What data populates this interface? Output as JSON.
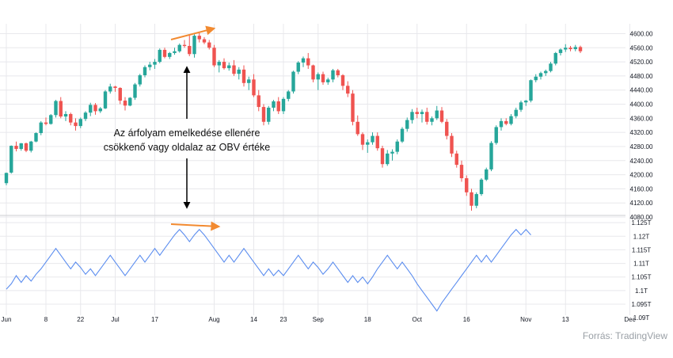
{
  "source_text": "Forrás: TradingView",
  "annotation": {
    "line1": "Az árfolyam emelkedése  ellenére",
    "line2": "csökkenő vagy oldalaz az OBV értéke"
  },
  "colors": {
    "up": "#26a69a",
    "down": "#ef5350",
    "obv_line": "#5b8def",
    "arrow_orange": "#f28a30",
    "grid": "#e8e8ec",
    "separator": "#d5d6da"
  },
  "chart_data": [
    {
      "type": "candlestick",
      "title": "",
      "ylim": [
        4080,
        4610
      ],
      "yticks": [
        4080,
        4120,
        4160,
        4200,
        4240,
        4280,
        4320,
        4360,
        4400,
        4440,
        4480,
        4520,
        4560,
        4600
      ],
      "ytick_labels": [
        "4080.00",
        "4120.00",
        "4160.00",
        "4200.00",
        "4240.00",
        "4280.00",
        "4320.00",
        "4360.00",
        "4400.00",
        "4440.00",
        "4480.00",
        "4520.00",
        "4560.00",
        "4600.00"
      ],
      "x_labels": [
        "Jun",
        "8",
        "22",
        "Jul",
        "17",
        "Aug",
        "14",
        "23",
        "Sep",
        "18",
        "Oct",
        "16",
        "Nov",
        "13",
        "Dec"
      ],
      "x_label_positions": [
        0,
        8,
        15,
        22,
        30,
        42,
        50,
        56,
        63,
        73,
        83,
        93,
        105,
        113,
        126
      ],
      "candles": [
        [
          4176,
          4206,
          4170,
          4205
        ],
        [
          4206,
          4283,
          4203,
          4282
        ],
        [
          4282,
          4294,
          4266,
          4273
        ],
        [
          4273,
          4290,
          4268,
          4289
        ],
        [
          4289,
          4291,
          4264,
          4268
        ],
        [
          4268,
          4296,
          4263,
          4294
        ],
        [
          4294,
          4320,
          4292,
          4318
        ],
        [
          4318,
          4352,
          4312,
          4348
        ],
        [
          4348,
          4362,
          4340,
          4344
        ],
        [
          4344,
          4372,
          4342,
          4369
        ],
        [
          4369,
          4412,
          4362,
          4409
        ],
        [
          4409,
          4420,
          4360,
          4365
        ],
        [
          4365,
          4380,
          4352,
          4372
        ],
        [
          4372,
          4376,
          4340,
          4348
        ],
        [
          4348,
          4360,
          4325,
          4338
        ],
        [
          4338,
          4362,
          4332,
          4358
        ],
        [
          4358,
          4380,
          4352,
          4376
        ],
        [
          4376,
          4404,
          4366,
          4398
        ],
        [
          4398,
          4403,
          4370,
          4380
        ],
        [
          4380,
          4392,
          4375,
          4388
        ],
        [
          4388,
          4440,
          4386,
          4436
        ],
        [
          4436,
          4458,
          4430,
          4450
        ],
        [
          4450,
          4452,
          4435,
          4446
        ],
        [
          4446,
          4448,
          4400,
          4410
        ],
        [
          4410,
          4420,
          4382,
          4396
        ],
        [
          4396,
          4420,
          4394,
          4418
        ],
        [
          4418,
          4460,
          4412,
          4456
        ],
        [
          4456,
          4486,
          4450,
          4482
        ],
        [
          4482,
          4510,
          4476,
          4505
        ],
        [
          4505,
          4520,
          4496,
          4512
        ],
        [
          4512,
          4528,
          4500,
          4520
        ],
        [
          4520,
          4558,
          4516,
          4554
        ],
        [
          4554,
          4560,
          4530,
          4534
        ],
        [
          4534,
          4548,
          4528,
          4545
        ],
        [
          4545,
          4560,
          4540,
          4550
        ],
        [
          4550,
          4572,
          4546,
          4568
        ],
        [
          4568,
          4582,
          4560,
          4565
        ],
        [
          4565,
          4598,
          4536,
          4542
        ],
        [
          4542,
          4598,
          4532,
          4594
        ],
        [
          4594,
          4602,
          4575,
          4584
        ],
        [
          4584,
          4590,
          4570,
          4575
        ],
        [
          4575,
          4582,
          4555,
          4560
        ],
        [
          4560,
          4568,
          4505,
          4510
        ],
        [
          4510,
          4525,
          4490,
          4520
        ],
        [
          4520,
          4530,
          4498,
          4502
        ],
        [
          4502,
          4518,
          4495,
          4510
        ],
        [
          4510,
          4525,
          4480,
          4486
        ],
        [
          4486,
          4505,
          4470,
          4498
        ],
        [
          4498,
          4510,
          4450,
          4460
        ],
        [
          4460,
          4478,
          4440,
          4470
        ],
        [
          4470,
          4485,
          4420,
          4425
        ],
        [
          4425,
          4440,
          4380,
          4392
        ],
        [
          4392,
          4400,
          4340,
          4350
        ],
        [
          4350,
          4395,
          4342,
          4390
        ],
        [
          4390,
          4412,
          4380,
          4408
        ],
        [
          4408,
          4420,
          4372,
          4380
        ],
        [
          4380,
          4420,
          4372,
          4415
        ],
        [
          4415,
          4440,
          4408,
          4436
        ],
        [
          4436,
          4495,
          4430,
          4492
        ],
        [
          4492,
          4522,
          4485,
          4518
        ],
        [
          4518,
          4535,
          4505,
          4530
        ],
        [
          4530,
          4545,
          4500,
          4510
        ],
        [
          4510,
          4512,
          4462,
          4470
        ],
        [
          4470,
          4490,
          4440,
          4485
        ],
        [
          4485,
          4492,
          4455,
          4462
        ],
        [
          4462,
          4475,
          4455,
          4470
        ],
        [
          4470,
          4500,
          4462,
          4496
        ],
        [
          4496,
          4500,
          4476,
          4482
        ],
        [
          4482,
          4485,
          4440,
          4452
        ],
        [
          4452,
          4465,
          4420,
          4430
        ],
        [
          4430,
          4440,
          4340,
          4350
        ],
        [
          4350,
          4368,
          4310,
          4315
        ],
        [
          4315,
          4320,
          4270,
          4285
        ],
        [
          4285,
          4300,
          4262,
          4292
        ],
        [
          4292,
          4320,
          4285,
          4310
        ],
        [
          4310,
          4320,
          4268,
          4275
        ],
        [
          4275,
          4282,
          4220,
          4230
        ],
        [
          4230,
          4270,
          4225,
          4260
        ],
        [
          4260,
          4272,
          4240,
          4265
        ],
        [
          4265,
          4300,
          4258,
          4294
        ],
        [
          4294,
          4335,
          4290,
          4330
        ],
        [
          4330,
          4362,
          4322,
          4355
        ],
        [
          4355,
          4386,
          4345,
          4378
        ],
        [
          4378,
          4390,
          4360,
          4372
        ],
        [
          4372,
          4385,
          4348,
          4378
        ],
        [
          4378,
          4390,
          4342,
          4350
        ],
        [
          4350,
          4365,
          4340,
          4360
        ],
        [
          4360,
          4395,
          4355,
          4382
        ],
        [
          4382,
          4392,
          4346,
          4350
        ],
        [
          4350,
          4358,
          4300,
          4310
        ],
        [
          4310,
          4318,
          4250,
          4260
        ],
        [
          4260,
          4268,
          4220,
          4228
        ],
        [
          4228,
          4240,
          4180,
          4190
        ],
        [
          4190,
          4198,
          4140,
          4150
        ],
        [
          4150,
          4160,
          4098,
          4112
        ],
        [
          4112,
          4150,
          4105,
          4145
        ],
        [
          4145,
          4190,
          4140,
          4186
        ],
        [
          4186,
          4220,
          4182,
          4215
        ],
        [
          4215,
          4295,
          4210,
          4290
        ],
        [
          4290,
          4340,
          4285,
          4335
        ],
        [
          4335,
          4360,
          4325,
          4352
        ],
        [
          4352,
          4360,
          4340,
          4344
        ],
        [
          4344,
          4372,
          4340,
          4366
        ],
        [
          4366,
          4390,
          4360,
          4384
        ],
        [
          4384,
          4410,
          4378,
          4405
        ],
        [
          4405,
          4412,
          4395,
          4410
        ],
        [
          4410,
          4470,
          4405,
          4468
        ],
        [
          4468,
          4485,
          4462,
          4478
        ],
        [
          4478,
          4492,
          4470,
          4488
        ],
        [
          4488,
          4498,
          4480,
          4494
        ],
        [
          4494,
          4520,
          4490,
          4515
        ],
        [
          4515,
          4548,
          4510,
          4545
        ],
        [
          4545,
          4558,
          4538,
          4555
        ],
        [
          4555,
          4570,
          4548,
          4560
        ],
        [
          4560,
          4565,
          4550,
          4556
        ],
        [
          4556,
          4568,
          4550,
          4562
        ],
        [
          4562,
          4566,
          4545,
          4550
        ]
      ]
    },
    {
      "type": "line",
      "title": "",
      "series": [
        {
          "values": [
            1.1005,
            1.1025,
            1.1055,
            1.103,
            1.1055,
            1.1035,
            1.106,
            1.108,
            1.1105,
            1.113,
            1.1155,
            1.113,
            1.1105,
            1.108,
            1.1105,
            1.1085,
            1.106,
            1.108,
            1.1055,
            1.108,
            1.1105,
            1.113,
            1.1105,
            1.108,
            1.1055,
            1.108,
            1.1105,
            1.113,
            1.1105,
            1.113,
            1.1155,
            1.113,
            1.1155,
            1.118,
            1.1205,
            1.1225,
            1.1205,
            1.118,
            1.1205,
            1.1225,
            1.1205,
            1.118,
            1.1155,
            1.113,
            1.1105,
            1.113,
            1.1105,
            1.113,
            1.1155,
            1.113,
            1.1105,
            1.108,
            1.1055,
            1.108,
            1.1055,
            1.1075,
            1.1055,
            1.108,
            1.1105,
            1.113,
            1.1105,
            1.108,
            1.1105,
            1.1085,
            1.106,
            1.108,
            1.1105,
            1.108,
            1.1055,
            1.103,
            1.1055,
            1.103,
            1.105,
            1.1025,
            1.105,
            1.108,
            1.1105,
            1.113,
            1.1105,
            1.108,
            1.1105,
            1.108,
            1.1055,
            1.1025,
            1.1,
            1.0975,
            1.095,
            1.0925,
            1.0955,
            1.098,
            1.1005,
            1.103,
            1.1055,
            1.108,
            1.1105,
            1.113,
            1.1105,
            1.113,
            1.1105,
            1.113,
            1.1155,
            1.118,
            1.1205,
            1.1225,
            1.1205,
            1.1225,
            1.1205
          ]
        }
      ],
      "ylim": [
        1.0915,
        1.1265
      ],
      "yticks": [
        1.09,
        1.095,
        1.1,
        1.105,
        1.11,
        1.115,
        1.12,
        1.125
      ],
      "ytick_labels": [
        "1.09T",
        "1.095T",
        "1.1T",
        "1.105T",
        "1.11T",
        "1.115T",
        "1.12T",
        "1.125T"
      ]
    }
  ]
}
